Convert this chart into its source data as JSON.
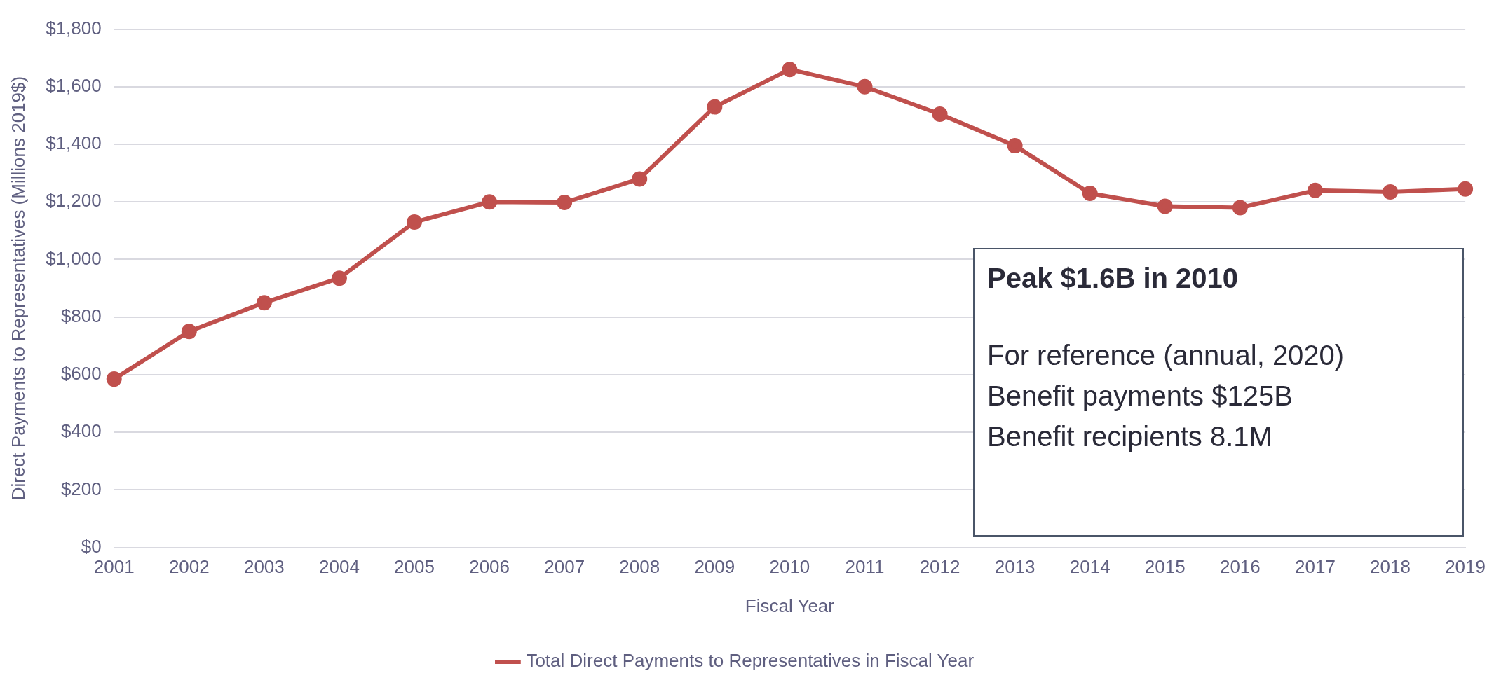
{
  "chart_data": {
    "type": "line",
    "xlabel": "Fiscal Year",
    "ylabel": "Direct Payments to Representatives (Millions 2019$)",
    "categories": [
      "2001",
      "2002",
      "2003",
      "2004",
      "2005",
      "2006",
      "2007",
      "2008",
      "2009",
      "2010",
      "2011",
      "2012",
      "2013",
      "2014",
      "2015",
      "2016",
      "2017",
      "2018",
      "2019"
    ],
    "series": [
      {
        "name": "Total Direct Payments to Representatives in Fiscal Year",
        "color": "#c0504d",
        "values": [
          585,
          750,
          850,
          935,
          1130,
          1200,
          1198,
          1280,
          1530,
          1660,
          1600,
          1505,
          1395,
          1230,
          1185,
          1180,
          1240,
          1235,
          1245
        ]
      }
    ],
    "ylim": [
      0,
      1800
    ],
    "yticks": [
      {
        "value": 0,
        "label": "$0"
      },
      {
        "value": 200,
        "label": "$200"
      },
      {
        "value": 400,
        "label": "$400"
      },
      {
        "value": 600,
        "label": "$600"
      },
      {
        "value": 800,
        "label": "$800"
      },
      {
        "value": 1000,
        "label": "$1,000"
      },
      {
        "value": 1200,
        "label": "$1,200"
      },
      {
        "value": 1400,
        "label": "$1,400"
      },
      {
        "value": 1600,
        "label": "$1,600"
      },
      {
        "value": 1800,
        "label": "$1,800"
      }
    ],
    "grid": "y",
    "legend": "bottom",
    "marker": "circle",
    "line_style": "solid",
    "annotations": [
      "Peak $1.6B in 2010",
      "For reference (annual, 2020)",
      "Benefit payments $125B",
      "Benefit recipients 8.1M"
    ]
  }
}
